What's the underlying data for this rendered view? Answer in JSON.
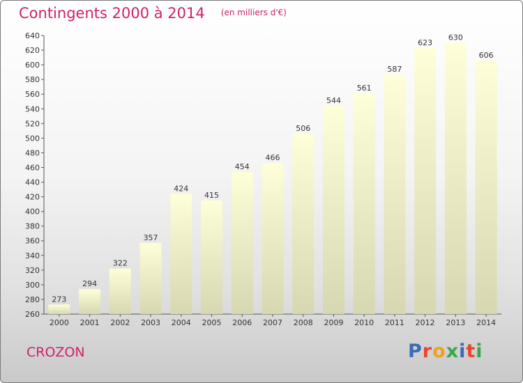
{
  "title": "Contingents 2000 à 2014",
  "subtitle": "(en milliers d'€)",
  "commune": "CROZON",
  "logo": {
    "text": "Proxiti",
    "letter_colors": [
      "#3b6ab5",
      "#e8452c",
      "#f0a020",
      "#3aa64a",
      "#3b6ab5",
      "#e8452c",
      "#3aa64a"
    ]
  },
  "colors": {
    "accent": "#d0206a",
    "bar_top": "#fefed8",
    "bar_bottom": "#d7d7b2"
  },
  "chart_data": {
    "type": "bar",
    "categories": [
      "2000",
      "2001",
      "2002",
      "2003",
      "2004",
      "2005",
      "2006",
      "2007",
      "2008",
      "2009",
      "2010",
      "2011",
      "2012",
      "2013",
      "2014"
    ],
    "values": [
      273,
      294,
      322,
      357,
      424,
      415,
      454,
      466,
      506,
      544,
      561,
      587,
      623,
      630,
      606
    ],
    "title": "Contingents 2000 à 2014",
    "ylim": [
      260,
      640
    ],
    "yticks": [
      260,
      280,
      300,
      320,
      340,
      360,
      380,
      400,
      420,
      440,
      460,
      480,
      500,
      520,
      540,
      560,
      580,
      600,
      620,
      640
    ],
    "grid": false,
    "data_labels": true
  }
}
